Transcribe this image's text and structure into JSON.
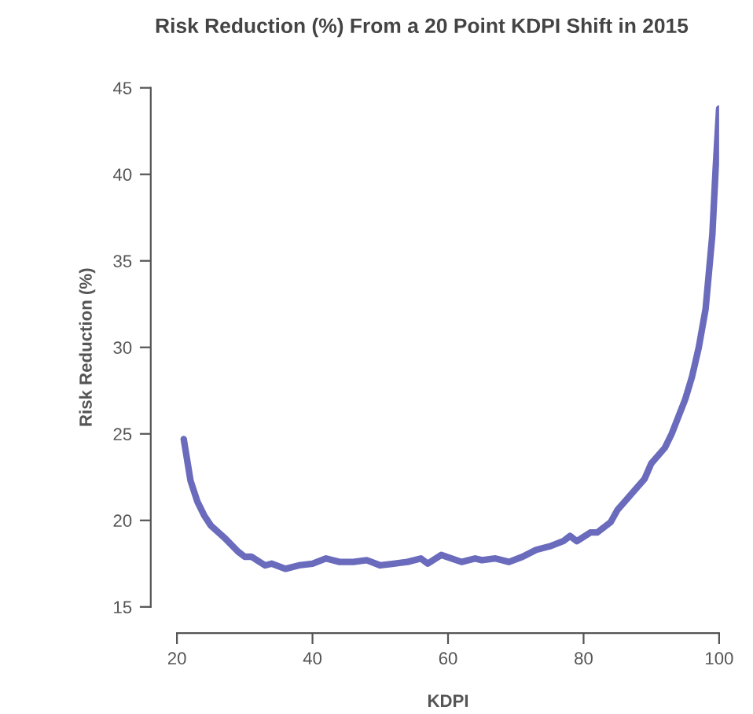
{
  "chart_data": {
    "type": "line",
    "title": "Risk Reduction (%) From a 20 Point KDPI Shift in 2015",
    "xlabel": "KDPI",
    "ylabel": "Risk Reduction (%)",
    "x": [
      21,
      22,
      23,
      24,
      25,
      27,
      29,
      30,
      31,
      33,
      34,
      36,
      38,
      40,
      42,
      44,
      46,
      48,
      50,
      52,
      54,
      56,
      57,
      59,
      62,
      64,
      65,
      67,
      69,
      71,
      73,
      75,
      77,
      78,
      79,
      81,
      82,
      84,
      85,
      87,
      89,
      90,
      92,
      93,
      95,
      96,
      97,
      98,
      99,
      99.5,
      100
    ],
    "series": [
      {
        "color": "#6b6bbd",
        "values": [
          24.7,
          22.3,
          21.1,
          20.3,
          19.7,
          19.0,
          18.2,
          17.9,
          17.9,
          17.4,
          17.5,
          17.2,
          17.4,
          17.5,
          17.8,
          17.6,
          17.6,
          17.7,
          17.4,
          17.5,
          17.6,
          17.8,
          17.5,
          18.0,
          17.6,
          17.8,
          17.7,
          17.8,
          17.6,
          17.9,
          18.3,
          18.5,
          18.8,
          19.1,
          18.8,
          19.3,
          19.3,
          19.9,
          20.6,
          21.5,
          22.4,
          23.3,
          24.2,
          25.0,
          27.0,
          28.3,
          30.0,
          32.2,
          36.5,
          40.4,
          43.8
        ]
      }
    ],
    "xlim": [
      20,
      100
    ],
    "ylim": [
      15,
      45
    ],
    "xticks": [
      20,
      40,
      60,
      80,
      100
    ],
    "yticks": [
      15,
      20,
      25,
      30,
      35,
      40,
      45
    ],
    "grid": false,
    "legend": false,
    "marker": "none",
    "line_style": "solid"
  }
}
